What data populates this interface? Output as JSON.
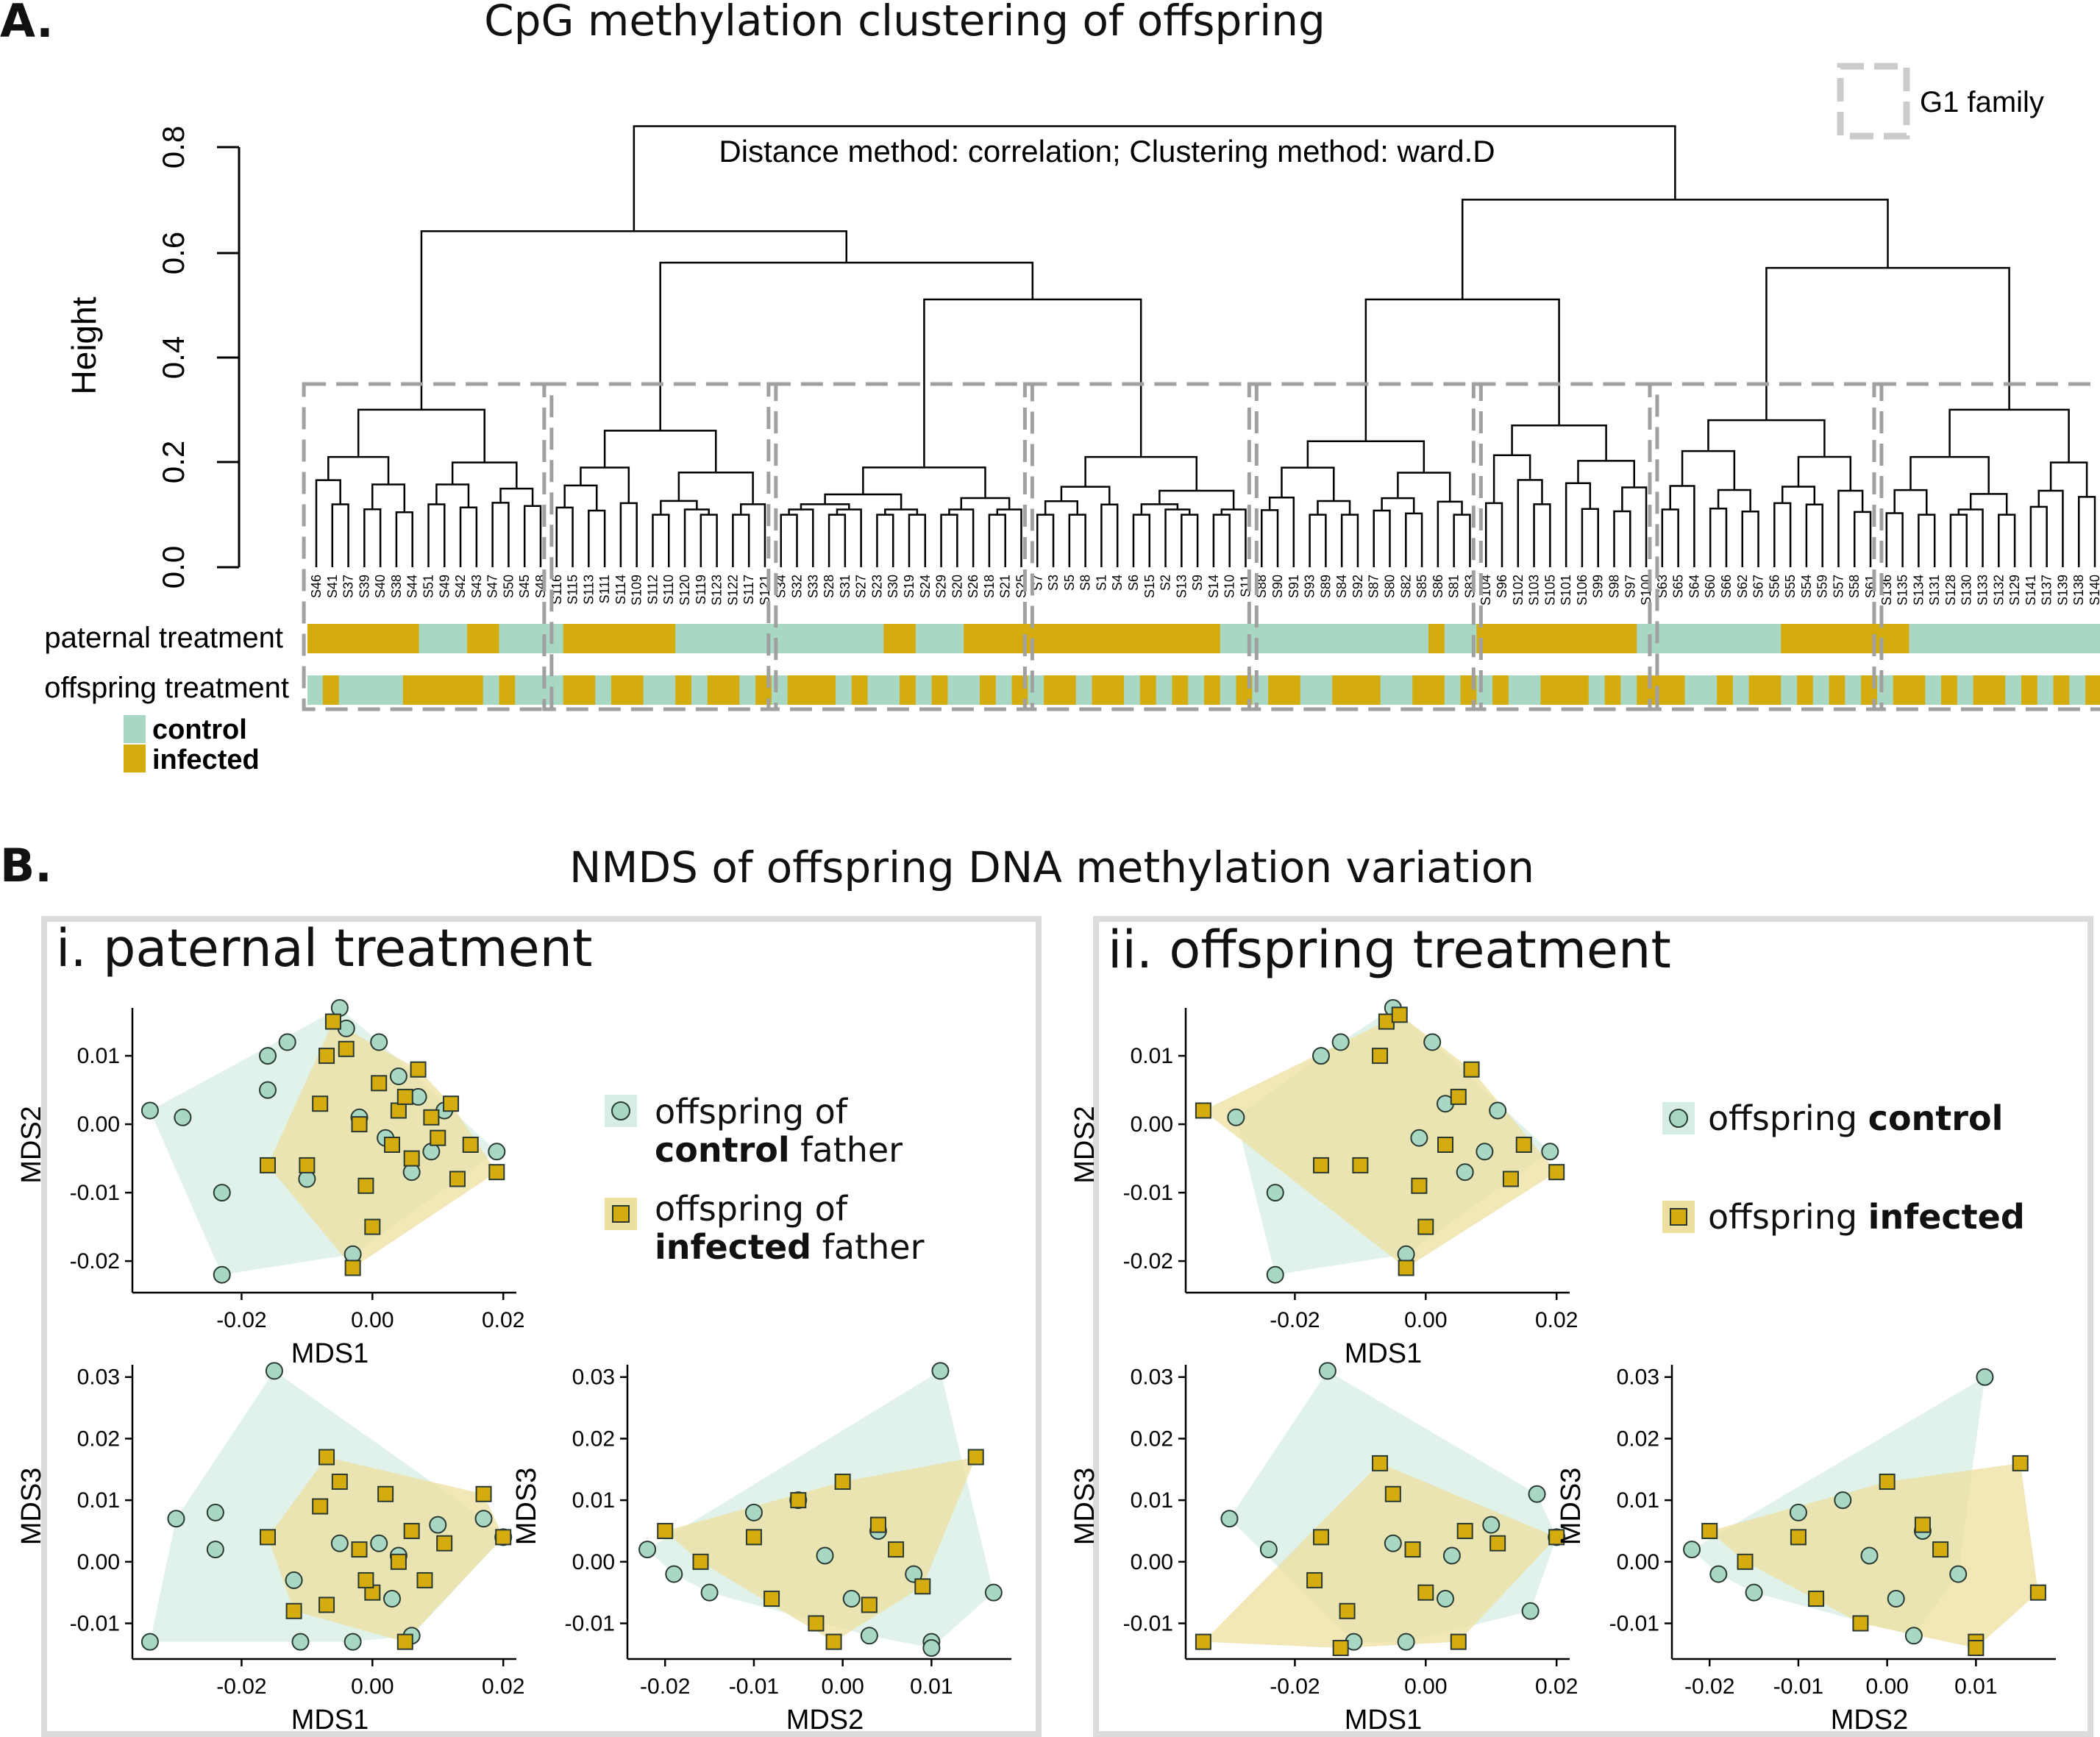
{
  "panel_a": {
    "letter": "A.",
    "title": "CpG methylation clustering of offspring",
    "legend_family": "G1 family",
    "annotation": "Distance method: correlation; Clustering method: ward.D",
    "ylabel": "Height",
    "yticks": [
      "0.0",
      "0.2",
      "0.4",
      "0.6",
      "0.8"
    ],
    "row_labels": [
      "paternal treatment",
      "offspring treatment"
    ],
    "legend": [
      {
        "label": "control",
        "color": "#a8d8c4"
      },
      {
        "label": "infected",
        "color": "#d4ac0d"
      }
    ],
    "leaves": [
      "S46",
      "S41",
      "S37",
      "S39",
      "S40",
      "S38",
      "S44",
      "S51",
      "S49",
      "S42",
      "S43",
      "S47",
      "S50",
      "S45",
      "S48",
      "S116",
      "S115",
      "S113",
      "S111",
      "S114",
      "S109",
      "S112",
      "S110",
      "S120",
      "S119",
      "S123",
      "S122",
      "S117",
      "S121",
      "S34",
      "S32",
      "S33",
      "S28",
      "S31",
      "S27",
      "S23",
      "S30",
      "S19",
      "S24",
      "S29",
      "S20",
      "S26",
      "S18",
      "S21",
      "S25",
      "S7",
      "S3",
      "S5",
      "S8",
      "S1",
      "S4",
      "S6",
      "S15",
      "S2",
      "S13",
      "S9",
      "S14",
      "S10",
      "S11",
      "S88",
      "S90",
      "S91",
      "S93",
      "S89",
      "S84",
      "S92",
      "S87",
      "S80",
      "S82",
      "S85",
      "S86",
      "S81",
      "S83",
      "S104",
      "S96",
      "S102",
      "S103",
      "S105",
      "S101",
      "S106",
      "S99",
      "S98",
      "S97",
      "S100",
      "S63",
      "S65",
      "S64",
      "S60",
      "S66",
      "S62",
      "S67",
      "S56",
      "S55",
      "S54",
      "S59",
      "S57",
      "S58",
      "S61",
      "S136",
      "S135",
      "S134",
      "S131",
      "S128",
      "S130",
      "S133",
      "S132",
      "S129",
      "S141",
      "S137",
      "S139",
      "S138",
      "S140"
    ]
  },
  "panel_b": {
    "letter": "B.",
    "title": "NMDS of offspring DNA methylation variation",
    "sub_i": {
      "title": "i. paternal treatment",
      "legend": [
        {
          "line1": "offspring of",
          "bold": "control",
          "rest": " father"
        },
        {
          "line1": "offspring of",
          "bold": "infected",
          "rest": " father"
        }
      ]
    },
    "sub_ii": {
      "title": "ii. offspring treatment",
      "legend": [
        {
          "pre": "offspring ",
          "bold": "control"
        },
        {
          "pre": "offspring ",
          "bold": "infected"
        }
      ]
    },
    "axes": {
      "mds1": "MDS1",
      "mds2": "MDS2",
      "mds3": "MDS3",
      "xticks_mds1": [
        "-0.02",
        "0.00",
        "0.02"
      ],
      "xticks_mds2": [
        "-0.02",
        "-0.01",
        "0.00",
        "0.01"
      ],
      "yticks_mds2": [
        "-0.02",
        "-0.01",
        "0.00",
        "0.01"
      ],
      "yticks_mds3": [
        "-0.01",
        "0.00",
        "0.01",
        "0.02",
        "0.03"
      ]
    }
  },
  "colors": {
    "control_fill": "#a8d8c4",
    "control_hull": "#d5ede3",
    "infected_fill": "#d4ac0d",
    "infected_hull": "#ecdf9f"
  },
  "chart_data": [
    {
      "type": "dendrogram",
      "title": "CpG methylation clustering of offspring",
      "ylabel": "Height",
      "ylim": [
        0,
        0.85
      ],
      "note": "Distance method: correlation; Clustering method: ward.D",
      "root_height": 0.84,
      "major_merges": [
        0.64,
        0.58,
        0.51,
        0.7,
        0.51,
        0.57
      ]
    },
    {
      "type": "scatter",
      "title": "i. paternal treatment (MDS1 vs MDS2)",
      "xlabel": "MDS1",
      "ylabel": "MDS2",
      "xlim": [
        -0.035,
        0.022
      ],
      "ylim": [
        -0.023,
        0.017
      ],
      "series": [
        {
          "name": "offspring of control father",
          "points": [
            [
              -0.034,
              0.002
            ],
            [
              -0.029,
              0.001
            ],
            [
              -0.023,
              -0.01
            ],
            [
              -0.023,
              -0.022
            ],
            [
              -0.016,
              0.01
            ],
            [
              -0.016,
              0.005
            ],
            [
              -0.013,
              0.012
            ],
            [
              -0.01,
              -0.008
            ],
            [
              -0.005,
              0.017
            ],
            [
              -0.004,
              0.014
            ],
            [
              -0.003,
              -0.019
            ],
            [
              0.001,
              0.012
            ],
            [
              0.004,
              0.007
            ],
            [
              0.006,
              -0.007
            ],
            [
              0.009,
              -0.004
            ],
            [
              0.011,
              0.002
            ],
            [
              0.019,
              -0.004
            ],
            [
              0.007,
              0.004
            ],
            [
              0.002,
              -0.002
            ],
            [
              -0.002,
              0.001
            ]
          ]
        },
        {
          "name": "offspring of infected father",
          "points": [
            [
              -0.016,
              -0.006
            ],
            [
              -0.01,
              -0.006
            ],
            [
              -0.008,
              0.003
            ],
            [
              -0.006,
              0.015
            ],
            [
              -0.004,
              0.011
            ],
            [
              -0.003,
              -0.021
            ],
            [
              -0.002,
              0.0
            ],
            [
              -0.001,
              -0.009
            ],
            [
              0.001,
              0.006
            ],
            [
              0.003,
              -0.003
            ],
            [
              0.004,
              0.002
            ],
            [
              0.005,
              0.004
            ],
            [
              0.006,
              -0.005
            ],
            [
              0.007,
              0.008
            ],
            [
              0.009,
              0.001
            ],
            [
              0.01,
              -0.002
            ],
            [
              0.012,
              0.003
            ],
            [
              0.013,
              -0.008
            ],
            [
              0.015,
              -0.003
            ],
            [
              0.019,
              -0.007
            ],
            [
              0.0,
              -0.015
            ],
            [
              -0.007,
              0.01
            ]
          ]
        }
      ]
    },
    {
      "type": "scatter",
      "title": "i. paternal treatment (MDS1 vs MDS3)",
      "xlabel": "MDS1",
      "ylabel": "MDS3",
      "xlim": [
        -0.035,
        0.022
      ],
      "ylim": [
        -0.014,
        0.032
      ],
      "series": [
        {
          "name": "offspring of control father",
          "points": [
            [
              -0.034,
              -0.013
            ],
            [
              -0.03,
              0.007
            ],
            [
              -0.024,
              0.008
            ],
            [
              -0.024,
              0.002
            ],
            [
              -0.015,
              0.031
            ],
            [
              -0.012,
              -0.003
            ],
            [
              -0.011,
              -0.013
            ],
            [
              -0.003,
              -0.013
            ],
            [
              0.001,
              0.003
            ],
            [
              0.003,
              -0.006
            ],
            [
              0.006,
              -0.012
            ],
            [
              0.01,
              0.006
            ],
            [
              0.017,
              0.007
            ],
            [
              0.02,
              0.004
            ],
            [
              0.004,
              0.001
            ],
            [
              -0.005,
              0.003
            ]
          ]
        },
        {
          "name": "offspring of infected father",
          "points": [
            [
              -0.016,
              0.004
            ],
            [
              -0.012,
              -0.008
            ],
            [
              -0.008,
              0.009
            ],
            [
              -0.007,
              -0.007
            ],
            [
              -0.007,
              0.017
            ],
            [
              -0.005,
              0.013
            ],
            [
              -0.002,
              0.002
            ],
            [
              0.0,
              -0.005
            ],
            [
              0.002,
              0.011
            ],
            [
              0.004,
              0.0
            ],
            [
              0.006,
              0.005
            ],
            [
              0.008,
              -0.003
            ],
            [
              0.011,
              0.003
            ],
            [
              0.017,
              0.011
            ],
            [
              0.02,
              0.004
            ],
            [
              0.005,
              -0.013
            ],
            [
              -0.001,
              -0.003
            ]
          ]
        }
      ]
    },
    {
      "type": "scatter",
      "title": "i. paternal treatment (MDS2 vs MDS3)",
      "xlabel": "MDS2",
      "ylabel": "MDS3",
      "xlim": [
        -0.023,
        0.019
      ],
      "ylim": [
        -0.014,
        0.032
      ],
      "series": [
        {
          "name": "offspring of control father",
          "points": [
            [
              -0.022,
              0.002
            ],
            [
              -0.019,
              -0.002
            ],
            [
              -0.015,
              -0.005
            ],
            [
              -0.01,
              0.008
            ],
            [
              -0.005,
              0.01
            ],
            [
              0.001,
              -0.006
            ],
            [
              0.004,
              0.005
            ],
            [
              0.008,
              -0.002
            ],
            [
              0.011,
              0.031
            ],
            [
              0.01,
              -0.013
            ],
            [
              0.01,
              -0.014
            ],
            [
              0.017,
              -0.005
            ],
            [
              0.003,
              -0.012
            ],
            [
              -0.002,
              0.001
            ]
          ]
        },
        {
          "name": "offspring of infected father",
          "points": [
            [
              -0.02,
              0.005
            ],
            [
              -0.016,
              0.0
            ],
            [
              -0.01,
              0.004
            ],
            [
              -0.008,
              -0.006
            ],
            [
              -0.005,
              0.01
            ],
            [
              -0.003,
              -0.01
            ],
            [
              0.0,
              0.013
            ],
            [
              0.003,
              -0.007
            ],
            [
              0.006,
              0.002
            ],
            [
              0.009,
              -0.004
            ],
            [
              0.015,
              0.017
            ],
            [
              -0.001,
              -0.013
            ],
            [
              0.004,
              0.006
            ]
          ]
        }
      ]
    },
    {
      "type": "scatter",
      "title": "ii. offspring treatment (MDS1 vs MDS2)",
      "xlabel": "MDS1",
      "ylabel": "MDS2",
      "xlim": [
        -0.035,
        0.022
      ],
      "ylim": [
        -0.023,
        0.017
      ],
      "series": [
        {
          "name": "offspring control",
          "points": [
            [
              -0.029,
              0.001
            ],
            [
              -0.023,
              -0.01
            ],
            [
              -0.023,
              -0.022
            ],
            [
              -0.016,
              0.01
            ],
            [
              -0.013,
              0.012
            ],
            [
              -0.005,
              0.017
            ],
            [
              -0.003,
              -0.019
            ],
            [
              0.001,
              0.012
            ],
            [
              0.006,
              -0.007
            ],
            [
              0.011,
              0.002
            ],
            [
              0.019,
              -0.004
            ],
            [
              0.009,
              -0.004
            ],
            [
              0.003,
              0.003
            ],
            [
              -0.001,
              -0.002
            ]
          ]
        },
        {
          "name": "offspring infected",
          "points": [
            [
              -0.034,
              0.002
            ],
            [
              -0.016,
              -0.006
            ],
            [
              -0.01,
              -0.006
            ],
            [
              -0.006,
              0.015
            ],
            [
              -0.004,
              0.016
            ],
            [
              -0.003,
              -0.021
            ],
            [
              -0.001,
              -0.009
            ],
            [
              0.003,
              -0.003
            ],
            [
              0.007,
              0.008
            ],
            [
              0.013,
              -0.008
            ],
            [
              0.015,
              -0.003
            ],
            [
              0.02,
              -0.007
            ],
            [
              0.0,
              -0.015
            ],
            [
              -0.007,
              0.01
            ],
            [
              0.005,
              0.004
            ]
          ]
        }
      ]
    },
    {
      "type": "scatter",
      "title": "ii. offspring treatment (MDS1 vs MDS3)",
      "xlabel": "MDS1",
      "ylabel": "MDS3",
      "xlim": [
        -0.035,
        0.022
      ],
      "ylim": [
        -0.014,
        0.032
      ],
      "series": [
        {
          "name": "offspring control",
          "points": [
            [
              -0.03,
              0.007
            ],
            [
              -0.024,
              0.002
            ],
            [
              -0.015,
              0.031
            ],
            [
              -0.011,
              -0.013
            ],
            [
              -0.003,
              -0.013
            ],
            [
              0.003,
              -0.006
            ],
            [
              0.01,
              0.006
            ],
            [
              0.017,
              0.011
            ],
            [
              0.02,
              0.004
            ],
            [
              0.016,
              -0.008
            ],
            [
              0.004,
              0.001
            ],
            [
              -0.005,
              0.003
            ]
          ]
        },
        {
          "name": "offspring infected",
          "points": [
            [
              -0.034,
              -0.013
            ],
            [
              -0.016,
              0.004
            ],
            [
              -0.012,
              -0.008
            ],
            [
              -0.007,
              0.016
            ],
            [
              -0.005,
              0.011
            ],
            [
              -0.002,
              0.002
            ],
            [
              0.0,
              -0.005
            ],
            [
              0.006,
              0.005
            ],
            [
              0.011,
              0.003
            ],
            [
              0.02,
              0.004
            ],
            [
              0.005,
              -0.013
            ],
            [
              -0.013,
              -0.014
            ],
            [
              -0.017,
              -0.003
            ]
          ]
        }
      ]
    },
    {
      "type": "scatter",
      "title": "ii. offspring treatment (MDS2 vs MDS3)",
      "xlabel": "MDS2",
      "ylabel": "MDS3",
      "xlim": [
        -0.023,
        0.019
      ],
      "ylim": [
        -0.014,
        0.032
      ],
      "series": [
        {
          "name": "offspring control",
          "points": [
            [
              -0.022,
              0.002
            ],
            [
              -0.019,
              -0.002
            ],
            [
              -0.015,
              -0.005
            ],
            [
              -0.01,
              0.008
            ],
            [
              -0.005,
              0.01
            ],
            [
              0.001,
              -0.006
            ],
            [
              0.004,
              0.005
            ],
            [
              0.008,
              -0.002
            ],
            [
              0.011,
              0.03
            ],
            [
              0.003,
              -0.012
            ],
            [
              -0.002,
              0.001
            ]
          ]
        },
        {
          "name": "offspring infected",
          "points": [
            [
              -0.02,
              0.005
            ],
            [
              -0.016,
              0.0
            ],
            [
              -0.01,
              0.004
            ],
            [
              -0.008,
              -0.006
            ],
            [
              -0.003,
              -0.01
            ],
            [
              0.0,
              0.013
            ],
            [
              0.006,
              0.002
            ],
            [
              0.01,
              -0.013
            ],
            [
              0.01,
              -0.014
            ],
            [
              0.015,
              0.016
            ],
            [
              0.017,
              -0.005
            ],
            [
              0.004,
              0.006
            ]
          ]
        }
      ]
    }
  ]
}
